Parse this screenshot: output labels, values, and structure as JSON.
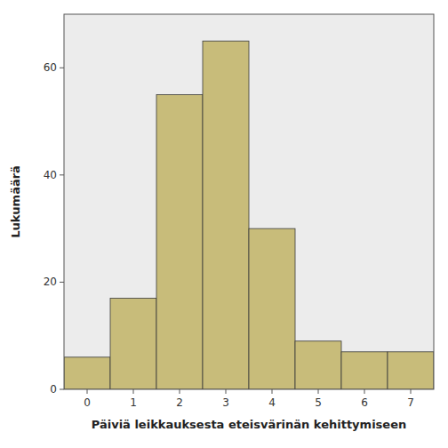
{
  "chart_data": {
    "type": "bar",
    "x": [
      0,
      1,
      2,
      3,
      4,
      5,
      6,
      7
    ],
    "values": [
      6,
      17,
      55,
      65,
      30,
      9,
      7,
      7
    ],
    "color": "#c8bc7a",
    "xlabel": "Päiviä leikkauksesta eteisvärinän kehittymiseen",
    "ylabel": "Lukumäärä",
    "xlim": [
      -0.5,
      7.5
    ],
    "ylim": [
      0,
      70
    ],
    "xticks": [
      0,
      1,
      2,
      3,
      4,
      5,
      6,
      7
    ],
    "yticks": [
      0,
      20,
      40,
      60
    ],
    "grid": false
  }
}
